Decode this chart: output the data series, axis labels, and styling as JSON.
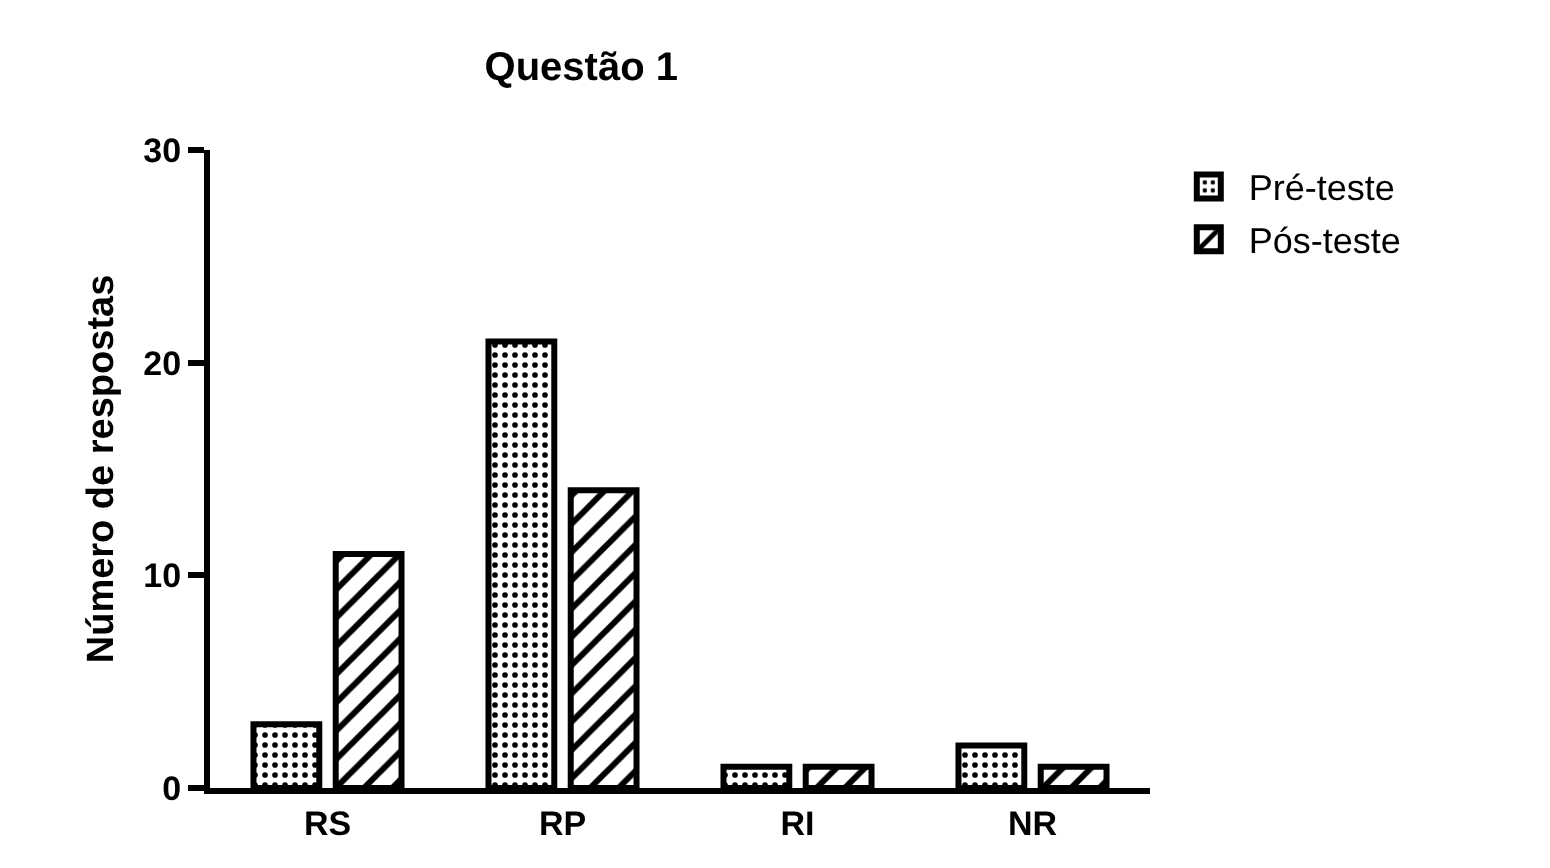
{
  "chart_data": {
    "type": "bar",
    "title": "Questão 1",
    "ylabel": "Número de respostas",
    "categories": [
      "RS",
      "RP",
      "RI",
      "NR"
    ],
    "series": [
      {
        "name": "Pré-teste",
        "color": "#000000",
        "values": [
          3,
          21,
          1,
          2
        ]
      },
      {
        "name": "Pós-teste",
        "color": "#000000",
        "values": [
          11,
          14,
          1,
          1
        ]
      }
    ],
    "ylim": [
      0,
      30
    ],
    "yticks": [
      0,
      10,
      20,
      30
    ],
    "grid": false,
    "legend": "top right"
  }
}
